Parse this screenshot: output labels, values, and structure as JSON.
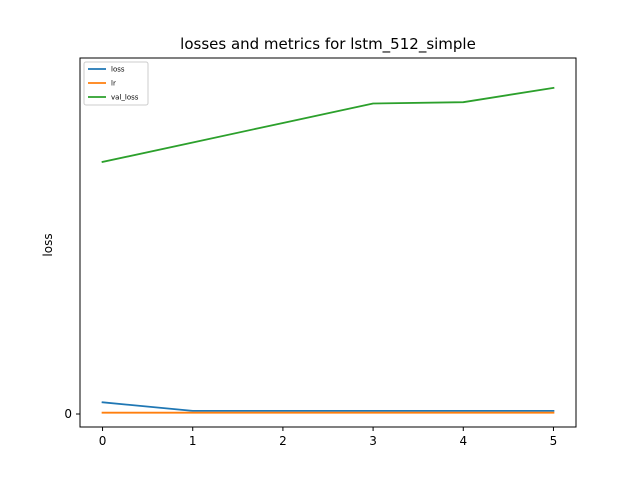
{
  "chart_data": {
    "type": "line",
    "title": "losses and metrics for lstm_512_simple",
    "xlabel": "",
    "ylabel": "loss",
    "x": [
      0,
      1,
      2,
      3,
      4,
      5
    ],
    "xticks": [
      "0",
      "1",
      "2",
      "3",
      "4",
      "5"
    ],
    "yticks": [
      {
        "value": 0,
        "label": "0"
      }
    ],
    "xlim": [
      -0.25,
      5.25
    ],
    "ylim": [
      -0.05,
      1.37
    ],
    "grid": false,
    "legend_position": "top-left",
    "series": [
      {
        "name": "loss",
        "color": "#1f77b4",
        "values": [
          0.045,
          0.012,
          0.012,
          0.012,
          0.012,
          0.012
        ]
      },
      {
        "name": "lr",
        "color": "#ff7f0e",
        "values": [
          0.005,
          0.005,
          0.005,
          0.005,
          0.005,
          0.005
        ]
      },
      {
        "name": "val_loss",
        "color": "#2ca02c",
        "values": [
          0.97,
          1.045,
          1.12,
          1.195,
          1.2,
          1.255
        ]
      }
    ]
  }
}
